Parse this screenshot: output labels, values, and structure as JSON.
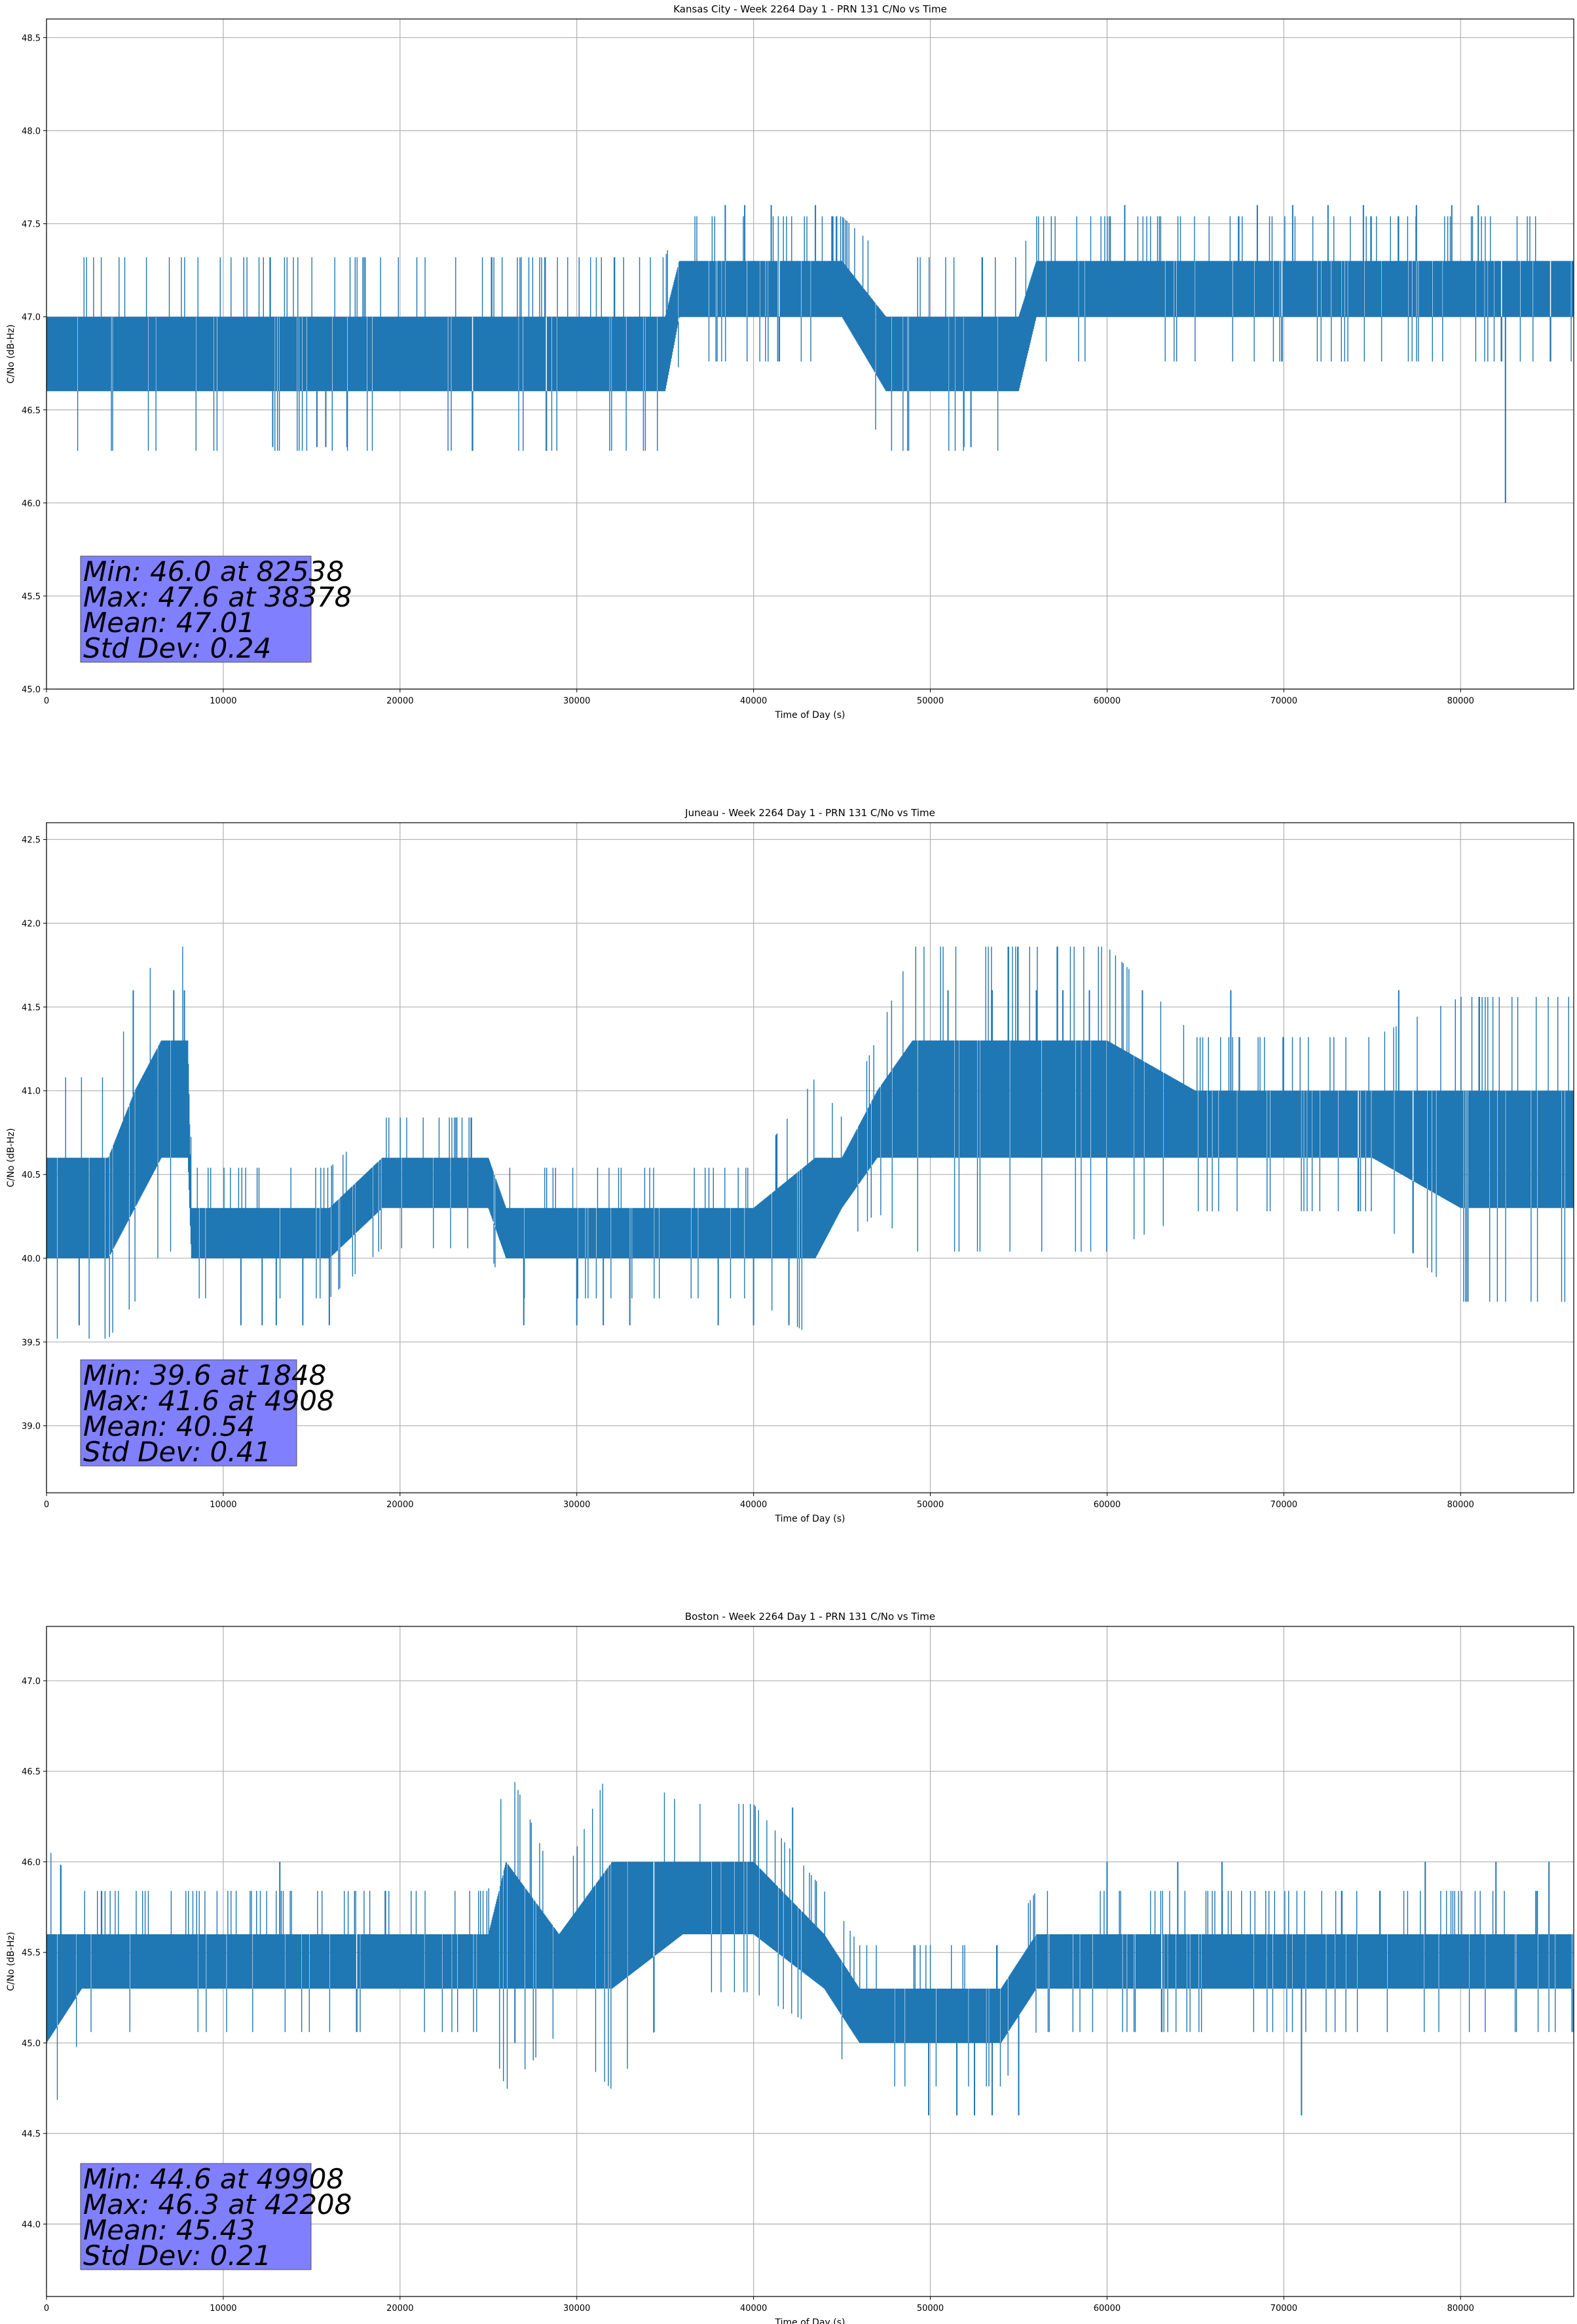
{
  "colors": {
    "series": "#1f77b4",
    "stats_box": "#8080ff",
    "grid": "#b0b0b0"
  },
  "chart_data": [
    {
      "type": "line",
      "title": "Kansas City - Week 2264 Day 1 - PRN 131 C/No vs Time",
      "xlabel": "Time of Day (s)",
      "ylabel": "C/No (dB-Hz)",
      "xlim": [
        0,
        86400
      ],
      "ylim": [
        45.0,
        48.6
      ],
      "xticks": [
        0,
        10000,
        20000,
        30000,
        40000,
        50000,
        60000,
        70000,
        80000
      ],
      "yticks": [
        45.0,
        45.5,
        46.0,
        46.5,
        47.0,
        47.5,
        48.0,
        48.5
      ],
      "grid": true,
      "series": [
        {
          "x": [
            0,
            5000,
            10000,
            15000,
            20000,
            25000,
            30000,
            35000,
            35800,
            38000,
            40000,
            42000,
            45000,
            47500,
            50000,
            52000,
            55000,
            56000,
            60000,
            65000,
            70000,
            75000,
            80000,
            86400
          ],
          "y_low": [
            46.6,
            46.6,
            46.6,
            46.6,
            46.6,
            46.6,
            46.6,
            46.6,
            47.0,
            47.0,
            47.0,
            47.0,
            47.0,
            46.6,
            46.6,
            46.6,
            46.6,
            47.0,
            47.0,
            47.0,
            47.0,
            47.0,
            47.0,
            47.0
          ],
          "y_high": [
            47.0,
            47.0,
            47.0,
            47.0,
            47.0,
            47.0,
            47.0,
            47.0,
            47.3,
            47.3,
            47.3,
            47.3,
            47.3,
            47.0,
            47.0,
            47.0,
            47.0,
            47.3,
            47.3,
            47.3,
            47.3,
            47.3,
            47.3,
            47.3
          ],
          "spikes": [
            {
              "x": 12800,
              "y": 46.3
            },
            {
              "x": 15300,
              "y": 46.3
            },
            {
              "x": 15800,
              "y": 46.3
            },
            {
              "x": 17000,
              "y": 46.3
            },
            {
              "x": 38400,
              "y": 47.6
            },
            {
              "x": 39500,
              "y": 47.6
            },
            {
              "x": 41000,
              "y": 47.6
            },
            {
              "x": 43500,
              "y": 47.6
            },
            {
              "x": 51900,
              "y": 46.3
            },
            {
              "x": 52300,
              "y": 46.3
            },
            {
              "x": 61000,
              "y": 47.6
            },
            {
              "x": 68500,
              "y": 47.6
            },
            {
              "x": 70500,
              "y": 47.6
            },
            {
              "x": 72500,
              "y": 47.6
            },
            {
              "x": 74500,
              "y": 47.6
            },
            {
              "x": 77500,
              "y": 47.6
            },
            {
              "x": 79500,
              "y": 47.6
            },
            {
              "x": 81000,
              "y": 47.6
            },
            {
              "x": 82538,
              "y": 46.0
            }
          ]
        }
      ],
      "stats": [
        "Min: 46.0 at 82538",
        "Max: 47.6 at 38378",
        "Mean: 47.01",
        "Std Dev: 0.24"
      ]
    },
    {
      "type": "line",
      "title": "Juneau - Week 2264 Day 1 - PRN 131 C/No vs Time",
      "xlabel": "Time of Day (s)",
      "ylabel": "C/No (dB-Hz)",
      "xlim": [
        0,
        86400
      ],
      "ylim": [
        38.6,
        42.6
      ],
      "xticks": [
        0,
        10000,
        20000,
        30000,
        40000,
        50000,
        60000,
        70000,
        80000
      ],
      "yticks": [
        39.0,
        39.5,
        40.0,
        40.5,
        41.0,
        41.5,
        42.0,
        42.5
      ],
      "grid": true,
      "series": [
        {
          "x": [
            0,
            1500,
            3500,
            5000,
            6500,
            8000,
            8200,
            12000,
            16000,
            19000,
            22000,
            25000,
            26000,
            30000,
            35000,
            40000,
            43500,
            45000,
            47000,
            49000,
            55000,
            60000,
            65000,
            70000,
            75000,
            80000,
            82000,
            86400
          ],
          "y_low": [
            40.0,
            40.0,
            40.0,
            40.3,
            40.6,
            40.6,
            40.0,
            40.0,
            40.0,
            40.3,
            40.3,
            40.3,
            40.0,
            40.0,
            40.0,
            40.0,
            40.0,
            40.3,
            40.6,
            40.6,
            40.6,
            40.6,
            40.6,
            40.6,
            40.6,
            40.3,
            40.3,
            40.3
          ],
          "y_high": [
            40.6,
            40.6,
            40.6,
            41.0,
            41.3,
            41.3,
            40.3,
            40.3,
            40.3,
            40.6,
            40.6,
            40.6,
            40.3,
            40.3,
            40.3,
            40.3,
            40.6,
            40.6,
            41.0,
            41.3,
            41.3,
            41.3,
            41.0,
            41.0,
            41.0,
            41.0,
            41.0,
            41.0
          ],
          "spikes": [
            {
              "x": 1848,
              "y": 39.6
            },
            {
              "x": 4908,
              "y": 41.6
            },
            {
              "x": 7200,
              "y": 41.6
            },
            {
              "x": 7800,
              "y": 41.6
            },
            {
              "x": 11000,
              "y": 39.6
            },
            {
              "x": 12200,
              "y": 39.6
            },
            {
              "x": 13000,
              "y": 39.6
            },
            {
              "x": 14500,
              "y": 39.6
            },
            {
              "x": 16000,
              "y": 39.6
            },
            {
              "x": 27000,
              "y": 39.6
            },
            {
              "x": 30000,
              "y": 39.6
            },
            {
              "x": 31500,
              "y": 39.6
            },
            {
              "x": 33000,
              "y": 39.6
            },
            {
              "x": 38000,
              "y": 39.6
            },
            {
              "x": 40000,
              "y": 39.6
            },
            {
              "x": 42000,
              "y": 39.6
            },
            {
              "x": 51000,
              "y": 41.6
            },
            {
              "x": 53500,
              "y": 41.6
            },
            {
              "x": 56000,
              "y": 41.6
            },
            {
              "x": 57500,
              "y": 41.6
            },
            {
              "x": 59000,
              "y": 41.6
            },
            {
              "x": 62000,
              "y": 41.6
            },
            {
              "x": 67000,
              "y": 41.6
            },
            {
              "x": 76500,
              "y": 41.6
            }
          ]
        }
      ],
      "stats": [
        "Min: 39.6 at 1848",
        "Max: 41.6 at 4908",
        "Mean: 40.54",
        "Std Dev: 0.41"
      ]
    },
    {
      "type": "line",
      "title": "Boston - Week 2264 Day 1 - PRN 131 C/No vs Time",
      "xlabel": "Time of Day (s)",
      "ylabel": "C/No (dB-Hz)",
      "xlim": [
        0,
        86400
      ],
      "ylim": [
        43.6,
        47.3
      ],
      "xticks": [
        0,
        10000,
        20000,
        30000,
        40000,
        50000,
        60000,
        70000,
        80000
      ],
      "yticks": [
        44.0,
        44.5,
        45.0,
        45.5,
        46.0,
        46.5,
        47.0
      ],
      "grid": true,
      "series": [
        {
          "x": [
            0,
            2000,
            5000,
            10000,
            15000,
            20000,
            25000,
            26000,
            29000,
            32000,
            36000,
            40000,
            44000,
            46000,
            48000,
            50000,
            54000,
            56000,
            58000,
            60000,
            65000,
            70000,
            75000,
            80000,
            86400
          ],
          "y_low": [
            45.0,
            45.3,
            45.3,
            45.3,
            45.3,
            45.3,
            45.3,
            45.3,
            45.3,
            45.3,
            45.6,
            45.6,
            45.3,
            45.0,
            45.0,
            45.0,
            45.0,
            45.3,
            45.3,
            45.3,
            45.3,
            45.3,
            45.3,
            45.3,
            45.3
          ],
          "y_high": [
            45.6,
            45.6,
            45.6,
            45.6,
            45.6,
            45.6,
            45.6,
            46.0,
            45.6,
            46.0,
            46.0,
            46.0,
            45.6,
            45.3,
            45.3,
            45.3,
            45.3,
            45.6,
            45.6,
            45.6,
            45.6,
            45.6,
            45.6,
            45.6,
            45.6
          ],
          "spikes": [
            {
              "x": 13200,
              "y": 46.0
            },
            {
              "x": 26500,
              "y": 45.0
            },
            {
              "x": 42208,
              "y": 46.3
            },
            {
              "x": 49908,
              "y": 44.6
            },
            {
              "x": 51500,
              "y": 44.6
            },
            {
              "x": 52500,
              "y": 44.6
            },
            {
              "x": 53500,
              "y": 44.6
            },
            {
              "x": 55000,
              "y": 44.6
            },
            {
              "x": 60000,
              "y": 46.0
            },
            {
              "x": 64000,
              "y": 46.0
            },
            {
              "x": 66500,
              "y": 46.0
            },
            {
              "x": 71000,
              "y": 44.6
            },
            {
              "x": 78000,
              "y": 46.0
            },
            {
              "x": 82000,
              "y": 46.0
            },
            {
              "x": 85000,
              "y": 46.0
            }
          ]
        }
      ],
      "stats": [
        "Min: 44.6 at 49908",
        "Max: 46.3 at 42208",
        "Mean: 45.43",
        "Std Dev: 0.21"
      ]
    }
  ]
}
